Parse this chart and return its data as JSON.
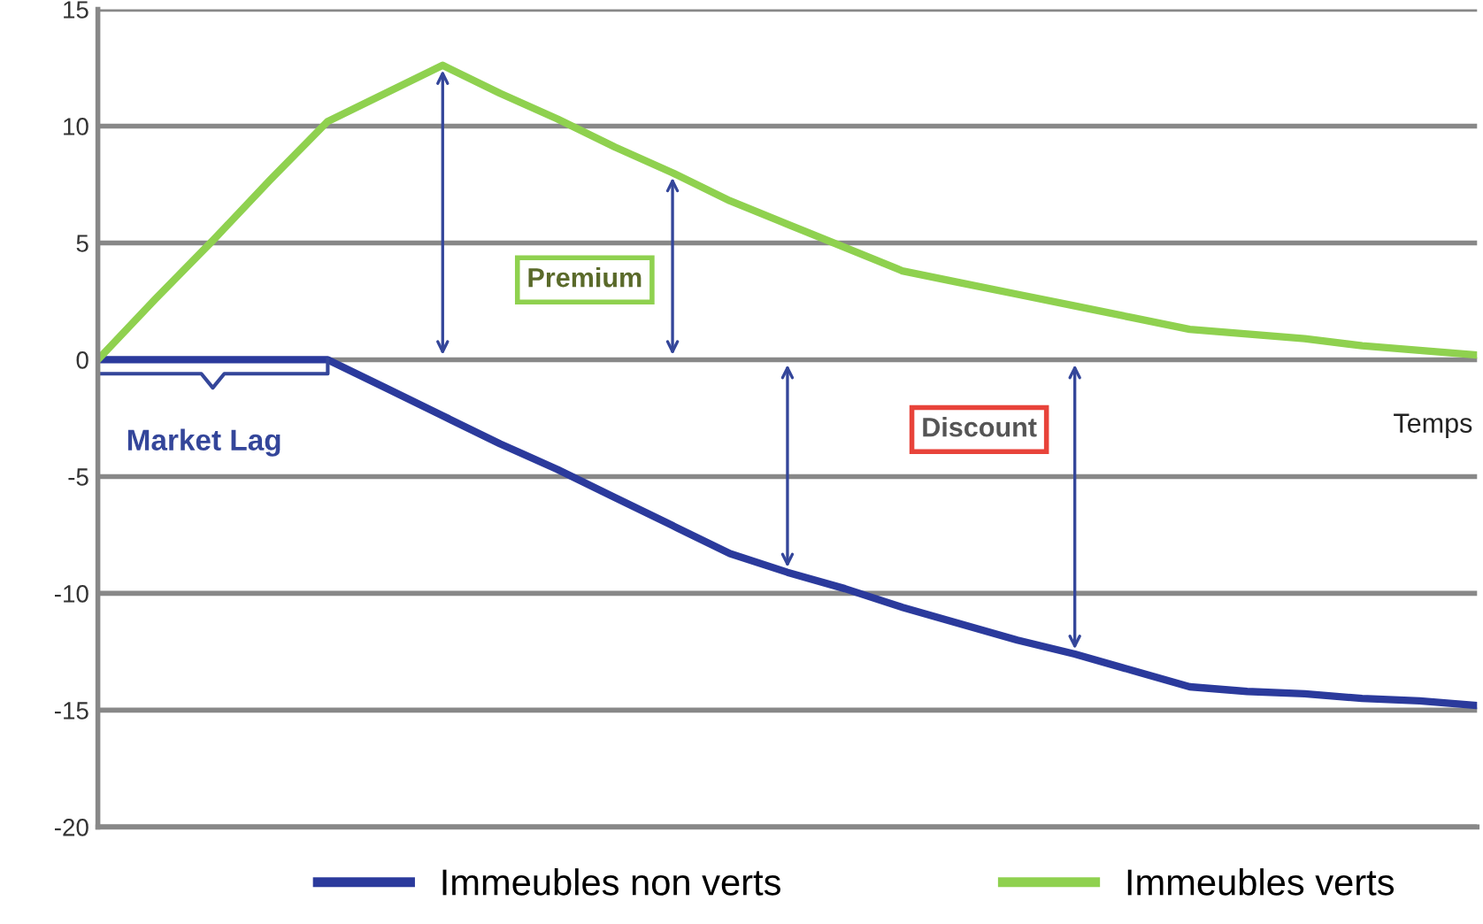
{
  "chart_data": {
    "type": "line",
    "categories": [
      null,
      null,
      null,
      null,
      null,
      null,
      null,
      null,
      null,
      null,
      null,
      null,
      null,
      null,
      null,
      null,
      null,
      null,
      null,
      null,
      null,
      null,
      null,
      null,
      null
    ],
    "ylim": [
      -20,
      15
    ],
    "yticks": [
      -20,
      -15,
      -10,
      -5,
      0,
      5,
      10,
      15
    ],
    "tick_labels": "y",
    "grid": "y",
    "legend": "bottom",
    "marker": "none",
    "line_style": "solid",
    "series": [
      {
        "name": "Immeubles non verts",
        "color": "#2b3a9c",
        "values": [
          0,
          0,
          0,
          0,
          0,
          -1.2,
          -2.4,
          -3.6,
          -4.7,
          -5.9,
          -7.1,
          -8.3,
          -9.1,
          -9.8,
          -10.6,
          -11.3,
          -12.0,
          -12.6,
          -13.3,
          -14.0,
          -14.2,
          -14.3,
          -14.5,
          -14.6,
          -14.8
        ]
      },
      {
        "name": "Immeubles verts",
        "color": "#8fd14f",
        "values": [
          0,
          2.6,
          5.1,
          7.7,
          10.2,
          11.4,
          12.6,
          11.4,
          10.3,
          9.1,
          8.0,
          6.8,
          5.8,
          4.8,
          3.8,
          3.3,
          2.8,
          2.3,
          1.8,
          1.3,
          1.1,
          0.9,
          0.6,
          0.4,
          0.2
        ]
      }
    ],
    "annotations": [
      "Market Lag",
      "Premium",
      "Discount",
      "Temps"
    ]
  }
}
